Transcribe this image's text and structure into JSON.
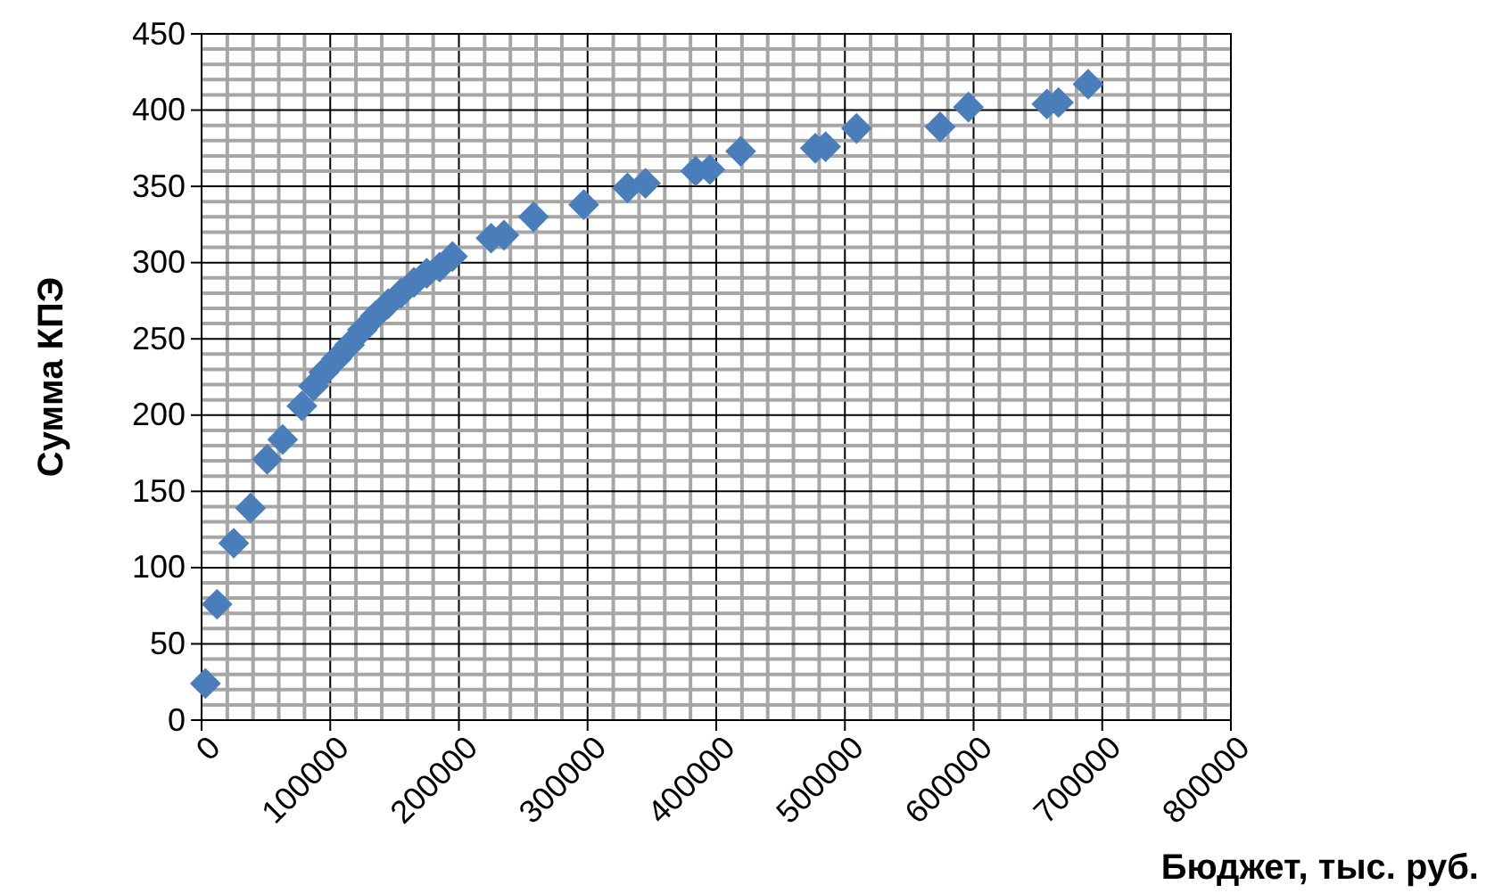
{
  "chart_data": {
    "type": "scatter",
    "xlabel": "Бюджет, тыс. руб.",
    "ylabel": "Сумма КПЭ",
    "x": [
      3000,
      12000,
      25000,
      38000,
      51000,
      63000,
      78000,
      87000,
      95000,
      105000,
      115000,
      125000,
      135000,
      145000,
      155000,
      165000,
      175000,
      185000,
      195000,
      225000,
      235000,
      258000,
      297000,
      331000,
      345000,
      384000,
      395000,
      419000,
      477000,
      485000,
      509000,
      574000,
      596000,
      657000,
      666000,
      689000
    ],
    "series": [
      {
        "color": "#4a7ebb",
        "values": [
          24,
          76,
          116,
          139,
          171,
          184,
          206,
          219,
          228,
          237,
          246,
          256,
          265,
          273,
          280,
          287,
          293,
          297,
          304,
          316,
          318,
          330,
          338,
          349,
          352,
          360,
          361,
          373,
          375,
          376,
          388,
          389,
          402,
          404,
          405,
          417
        ]
      }
    ],
    "xlim": [
      0,
      800000
    ],
    "xticks": [
      0,
      100000,
      200000,
      300000,
      400000,
      500000,
      600000,
      700000,
      800000
    ],
    "ylim": [
      0,
      450
    ],
    "yticks": [
      0,
      50,
      100,
      150,
      200,
      250,
      300,
      350,
      400,
      450
    ],
    "grid": true,
    "marker": "diamond"
  }
}
